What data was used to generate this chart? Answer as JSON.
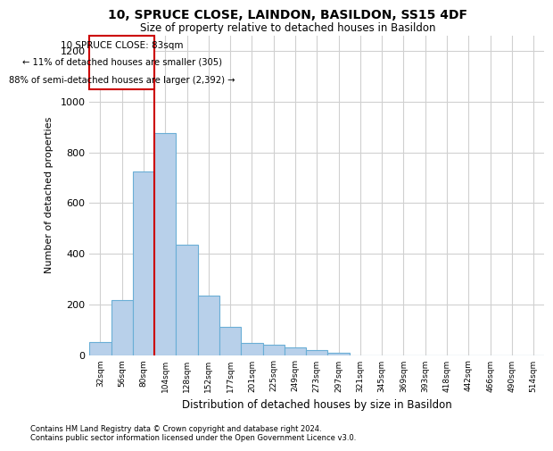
{
  "title": "10, SPRUCE CLOSE, LAINDON, BASILDON, SS15 4DF",
  "subtitle": "Size of property relative to detached houses in Basildon",
  "xlabel": "Distribution of detached houses by size in Basildon",
  "ylabel": "Number of detached properties",
  "categories": [
    "32sqm",
    "56sqm",
    "80sqm",
    "104sqm",
    "128sqm",
    "152sqm",
    "177sqm",
    "201sqm",
    "225sqm",
    "249sqm",
    "273sqm",
    "297sqm",
    "321sqm",
    "345sqm",
    "369sqm",
    "393sqm",
    "418sqm",
    "442sqm",
    "466sqm",
    "490sqm",
    "514sqm"
  ],
  "values": [
    50,
    215,
    725,
    875,
    435,
    235,
    110,
    47,
    40,
    30,
    20,
    10,
    0,
    0,
    0,
    0,
    0,
    0,
    0,
    0,
    0
  ],
  "bar_color": "#b8d0ea",
  "bar_edgecolor": "#6aaed6",
  "property_label": "10 SPRUCE CLOSE: 83sqm",
  "annotation_line1": "← 11% of detached houses are smaller (305)",
  "annotation_line2": "88% of semi-detached houses are larger (2,392) →",
  "vline_x_index": 2.5,
  "vline_color": "#cc0000",
  "box_color": "#cc0000",
  "ylim": [
    0,
    1260
  ],
  "yticks": [
    0,
    200,
    400,
    600,
    800,
    1000,
    1200
  ],
  "footnote1": "Contains HM Land Registry data © Crown copyright and database right 2024.",
  "footnote2": "Contains public sector information licensed under the Open Government Licence v3.0.",
  "background_color": "#ffffff",
  "grid_color": "#d0d0d0"
}
